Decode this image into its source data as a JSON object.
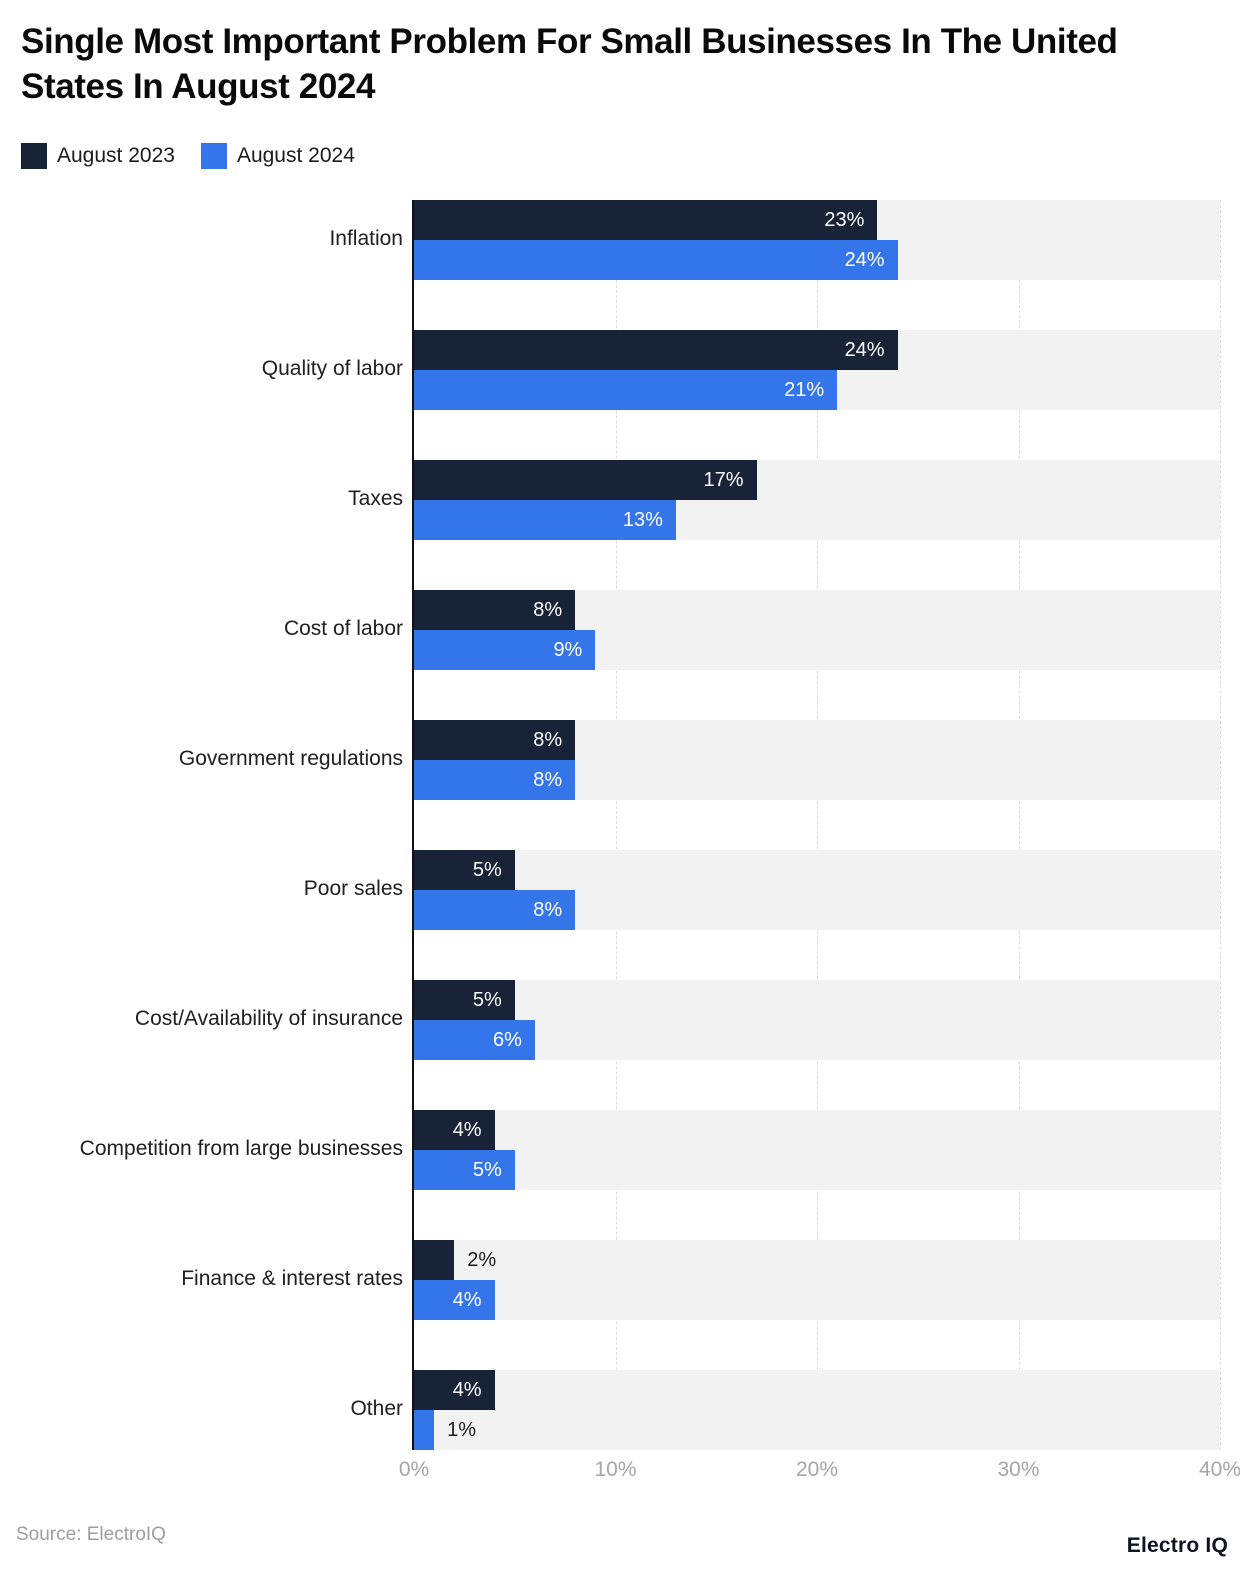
{
  "header": {
    "title": "Single Most Important Problem For Small Businesses In The United States In August 2024"
  },
  "legend": [
    {
      "label": "August 2023",
      "color": "#182338"
    },
    {
      "label": "August 2024",
      "color": "#3575EA"
    }
  ],
  "chart_data": {
    "type": "bar",
    "orientation": "horizontal",
    "title": "Single Most Important Problem For Small Businesses In The United States In August 2024",
    "categories": [
      "Inflation",
      "Quality of labor",
      "Taxes",
      "Cost of labor",
      "Government regulations",
      "Poor sales",
      "Cost/Availability of insurance",
      "Competition from large businesses",
      "Finance & interest rates",
      "Other"
    ],
    "series": [
      {
        "name": "August 2023",
        "color": "#182338",
        "values": [
          23,
          24,
          17,
          8,
          8,
          5,
          5,
          4,
          2,
          4
        ]
      },
      {
        "name": "August 2024",
        "color": "#3575EA",
        "values": [
          24,
          21,
          13,
          9,
          8,
          8,
          6,
          5,
          4,
          1
        ]
      }
    ],
    "value_suffix": "%",
    "xlabel": "",
    "ylabel": "",
    "xlim": [
      0,
      40
    ],
    "x_ticks": [
      0,
      10,
      20,
      30,
      40
    ],
    "x_tick_labels": [
      "0%",
      "10%",
      "20%",
      "30%",
      "40%"
    ],
    "grid": "vertical-dashed",
    "legend_position": "top-left",
    "row_band_color": "#f2f2f3",
    "label_inside_color": "#ffffff",
    "label_outside_color": "#1c1c1c"
  },
  "footer": {
    "source": "Source: ElectroIQ",
    "brand": "Electro IQ"
  }
}
